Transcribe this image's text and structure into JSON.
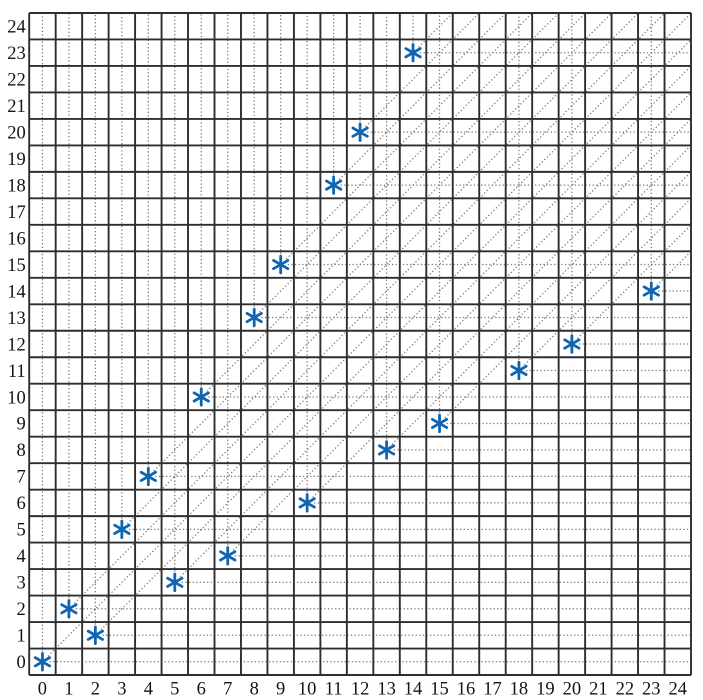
{
  "page": {
    "title": "Grid scatter plot of a self-inverse integer permutation",
    "background_color": "#ffffff"
  },
  "chart_data": {
    "type": "scatter",
    "title": "",
    "xlabel": "",
    "ylabel": "",
    "xlim": [
      0,
      24
    ],
    "ylim": [
      0,
      24
    ],
    "grid": true,
    "legend": "none",
    "x_tick_labels": [
      "0",
      "1",
      "2",
      "3",
      "4",
      "5",
      "6",
      "7",
      "8",
      "9",
      "10",
      "11",
      "12",
      "13",
      "14",
      "15",
      "16",
      "17",
      "18",
      "19",
      "20",
      "21",
      "22",
      "23",
      "24"
    ],
    "y_tick_labels": [
      "0",
      "1",
      "2",
      "3",
      "4",
      "5",
      "6",
      "7",
      "8",
      "9",
      "10",
      "11",
      "12",
      "13",
      "14",
      "15",
      "16",
      "17",
      "18",
      "19",
      "20",
      "21",
      "22",
      "23",
      "24"
    ],
    "points": [
      [
        0,
        0
      ],
      [
        1,
        2
      ],
      [
        2,
        1
      ],
      [
        3,
        5
      ],
      [
        4,
        7
      ],
      [
        5,
        3
      ],
      [
        6,
        10
      ],
      [
        7,
        4
      ],
      [
        8,
        13
      ],
      [
        9,
        15
      ],
      [
        10,
        6
      ],
      [
        11,
        18
      ],
      [
        12,
        20
      ],
      [
        13,
        8
      ],
      [
        14,
        23
      ],
      [
        15,
        9
      ],
      [
        18,
        11
      ],
      [
        20,
        12
      ],
      [
        23,
        14
      ]
    ],
    "marker": {
      "glyph": "asterisk-6-arm",
      "color": "#1065b3",
      "radius": 8.3,
      "stroke_width": 2.8
    },
    "guide_rays": {
      "description": "dotted rays from every plotted point extending up, right, and diagonally up-right to the plot border",
      "directions": [
        "up",
        "right",
        "diagonal-up-right"
      ],
      "color": "#7a7a7a"
    },
    "grid_style": {
      "line_color": "#2e2e2e",
      "cell_count_x": 25,
      "cell_count_y": 25
    },
    "tick_label_color": "#141414"
  }
}
